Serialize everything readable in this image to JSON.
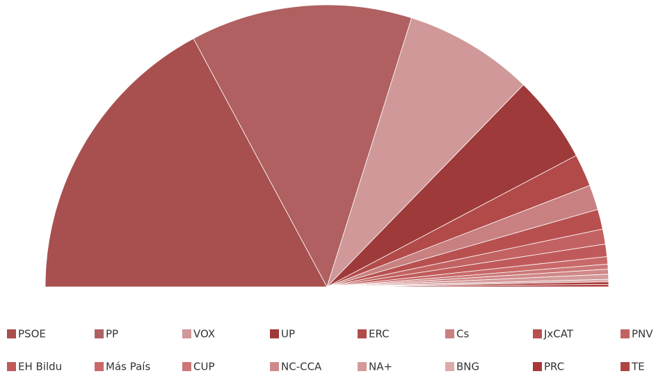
{
  "chart_data": {
    "type": "half-pie",
    "categories": [
      "PSOE",
      "PP",
      "VOX",
      "UP",
      "ERC",
      "Cs",
      "JxCAT",
      "PNV",
      "EH Bildu",
      "Más País",
      "CUP",
      "NC-CCA",
      "NA+",
      "BNG",
      "PRC",
      "TE"
    ],
    "values": [
      120,
      89,
      52,
      35,
      13,
      10,
      8,
      6,
      5,
      3,
      2,
      2,
      2,
      1,
      1,
      1
    ],
    "colors": [
      "#a84f4f",
      "#b06060",
      "#d09898",
      "#9e3a3a",
      "#b24a4a",
      "#c88080",
      "#b85050",
      "#c26262",
      "#c05a5a",
      "#c86868",
      "#cc7777",
      "#d08888",
      "#d49a9a",
      "#dcaaaa",
      "#a83838",
      "#b04444"
    ],
    "legend": "bottom"
  }
}
